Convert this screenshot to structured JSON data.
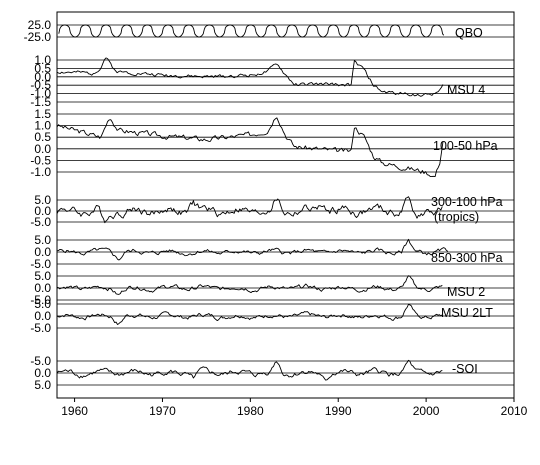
{
  "chart_data": {
    "type": "line",
    "x_axis": {
      "range": [
        1958,
        2010
      ],
      "ticks": [
        "1960",
        "1970",
        "1980",
        "1990",
        "2000",
        "2010"
      ]
    },
    "series": [
      {
        "name": "QBO",
        "tick_labels": [
          "25.0",
          "-25.0"
        ],
        "grid_values": [
          25,
          -25
        ],
        "range": [
          -25,
          25
        ],
        "kind": "qbo",
        "end": 2002,
        "seed": 1
      },
      {
        "name": "MSU 4",
        "tick_labels": [
          "1.0",
          "0.5",
          "0.0",
          "-0.5",
          "-1.0",
          "-1.5"
        ],
        "grid_values": [
          1.0,
          0.5,
          0.0,
          -0.5,
          -1.0,
          -1.5
        ],
        "range": [
          -1.5,
          1.0
        ],
        "kind": "strat",
        "start": 1958,
        "end": 2002,
        "noise": 0.09,
        "seed": 2,
        "anchors": [
          [
            1958,
            0.3
          ],
          [
            1962,
            0.2
          ],
          [
            1963,
            0.55
          ],
          [
            1963.5,
            1.2
          ],
          [
            1964.5,
            0.45
          ],
          [
            1965,
            0.3
          ],
          [
            1970,
            0.1
          ],
          [
            1975,
            0.0
          ],
          [
            1980,
            0.1
          ],
          [
            1982,
            0.3
          ],
          [
            1983,
            0.8
          ],
          [
            1984,
            0.1
          ],
          [
            1985,
            -0.45
          ],
          [
            1990,
            -0.45
          ],
          [
            1991.5,
            -0.5
          ],
          [
            1991.8,
            0.9
          ],
          [
            1993,
            0.4
          ],
          [
            1994,
            -0.5
          ],
          [
            1995,
            -0.9
          ],
          [
            2000,
            -1.1
          ],
          [
            2001.5,
            -0.9
          ],
          [
            2002,
            -0.5
          ]
        ]
      },
      {
        "name": "100-50 hPa",
        "tick_labels": [
          "1.5",
          "1.0",
          "0.5",
          "0.0",
          "-0.5",
          "-1.0"
        ],
        "grid_values": [
          1.5,
          1.0,
          0.5,
          0.0,
          -0.5,
          -1.0
        ],
        "range": [
          -1.0,
          1.5
        ],
        "kind": "strat",
        "start": 1958,
        "end": 2002,
        "noise": 0.1,
        "seed": 3,
        "anchors": [
          [
            1958,
            1.0
          ],
          [
            1963,
            0.5
          ],
          [
            1964,
            1.4
          ],
          [
            1965,
            0.8
          ],
          [
            1970,
            0.55
          ],
          [
            1975,
            0.4
          ],
          [
            1980,
            0.6
          ],
          [
            1982,
            0.8
          ],
          [
            1983,
            1.5
          ],
          [
            1984,
            0.6
          ],
          [
            1985,
            0.1
          ],
          [
            1990,
            -0.1
          ],
          [
            1991.5,
            -0.1
          ],
          [
            1991.8,
            1.0
          ],
          [
            1993,
            0.5
          ],
          [
            1994,
            -0.3
          ],
          [
            1995,
            -0.6
          ],
          [
            2000,
            -1.0
          ],
          [
            2001,
            -1.2
          ],
          [
            2001.6,
            -0.5
          ],
          [
            2002,
            0.6
          ]
        ]
      },
      {
        "name": "300-100 hPa (tropics)",
        "tick_labels": [
          "5.0",
          "0.0",
          "-5.0"
        ],
        "grid_values": [
          5.0,
          0.0,
          -5.0
        ],
        "range": [
          -5.0,
          5.0
        ],
        "kind": "noisy",
        "start": 1958,
        "end": 2002,
        "amp": 2.0,
        "seed": 4,
        "peaks": [
          [
            1963.5,
            -4.5
          ],
          [
            1973.5,
            4.0
          ],
          [
            1983,
            5.0
          ],
          [
            1988,
            3.5
          ],
          [
            1998,
            5.5
          ],
          [
            1999,
            -3.0
          ]
        ]
      },
      {
        "name": "850-300 hPa",
        "tick_labels": [
          "5.0",
          "0.0",
          "-5.0"
        ],
        "grid_values": [
          5.0,
          0.0,
          -5.0
        ],
        "range": [
          -5.0,
          5.0
        ],
        "kind": "noisy",
        "start": 1958,
        "end": 2002.5,
        "amp": 1.0,
        "seed": 5,
        "peaks": [
          [
            1998,
            4.5
          ],
          [
            1965,
            -2.5
          ]
        ]
      },
      {
        "name": "MSU 2",
        "tick_labels": [
          "5.0",
          "0.0",
          "-5.0"
        ],
        "grid_values": [
          5.0,
          0.0,
          -5.0
        ],
        "range": [
          -5.0,
          5.0
        ],
        "kind": "noisy",
        "start": 1958,
        "end": 2002,
        "amp": 1.0,
        "seed": 6,
        "peaks": [
          [
            1998,
            4.0
          ],
          [
            1965,
            -2.5
          ]
        ]
      },
      {
        "name": "MSU 2LT",
        "tick_labels": [
          "5.0",
          "0.0",
          "-5.0"
        ],
        "grid_values": [
          5.0,
          0.0,
          -5.0
        ],
        "range": [
          -5.0,
          5.0
        ],
        "kind": "noisy",
        "start": 1958,
        "end": 2002,
        "amp": 1.0,
        "seed": 7,
        "peaks": [
          [
            1998,
            4.5
          ],
          [
            1965,
            -3.0
          ]
        ]
      },
      {
        "name": "-SOI",
        "tick_labels": [
          "-5.0",
          "0.0",
          "5.0"
        ],
        "grid_values": [
          5.0,
          0.0,
          -5.0
        ],
        "range": [
          -5.0,
          5.0
        ],
        "kind": "noisy",
        "start": 1958,
        "end": 2002,
        "amp": 1.2,
        "seed": 8,
        "peaks": [
          [
            1983,
            5.0
          ],
          [
            1998,
            4.0
          ],
          [
            1973.5,
            -2.5
          ],
          [
            1988.5,
            -3.0
          ]
        ]
      }
    ]
  }
}
